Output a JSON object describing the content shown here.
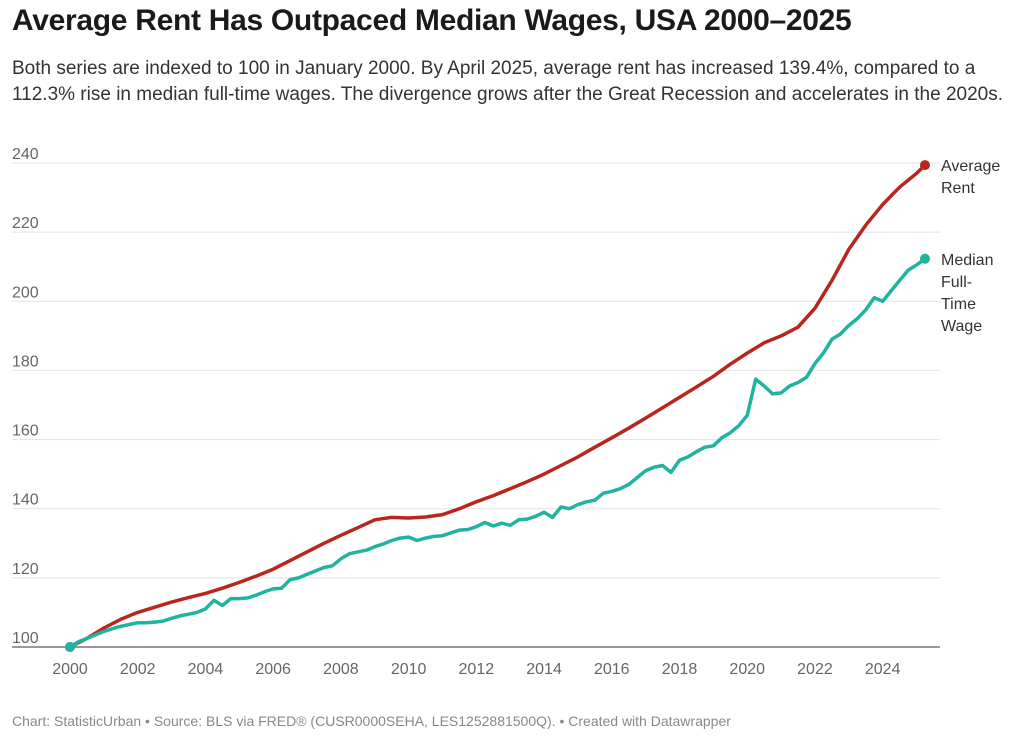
{
  "title": "Average Rent Has Outpaced Median Wages, USA 2000–2025",
  "subtitle": "Both series are indexed to 100 in January 2000. By April 2025, average rent has increased 139.4%, compared to a 112.3% rise in median full-time wages. The divergence grows after the Great Recession and accelerates in the 2020s.",
  "footer": "Chart: StatisticUrban • Source: BLS via FRED® (CUSR0000SEHA, LES1252881500Q). • Created with Datawrapper",
  "chart_data": {
    "type": "line",
    "xlim": [
      2000,
      2025.25
    ],
    "ylim": [
      100,
      240
    ],
    "x_ticks": [
      2000,
      2002,
      2004,
      2006,
      2008,
      2010,
      2012,
      2014,
      2016,
      2018,
      2020,
      2022,
      2024
    ],
    "y_ticks": [
      100,
      120,
      140,
      160,
      180,
      200,
      220,
      240
    ],
    "grid": "horizontal",
    "legend": "direct labels at line ends",
    "series": [
      {
        "name": "Average Rent",
        "label_lines": [
          "Average",
          "Rent"
        ],
        "color": "#b8261e",
        "x": [
          2000,
          2000.5,
          2001,
          2001.5,
          2002,
          2002.5,
          2003,
          2003.5,
          2004,
          2004.5,
          2005,
          2005.5,
          2006,
          2006.5,
          2007,
          2007.5,
          2008,
          2008.5,
          2009,
          2009.5,
          2010,
          2010.5,
          2011,
          2011.5,
          2012,
          2012.5,
          2013,
          2013.5,
          2014,
          2014.5,
          2015,
          2015.5,
          2016,
          2016.5,
          2017,
          2017.5,
          2018,
          2018.5,
          2019,
          2019.5,
          2020,
          2020.5,
          2021,
          2021.5,
          2022,
          2022.5,
          2023,
          2023.5,
          2024,
          2024.5,
          2025,
          2025.25
        ],
        "values": [
          100,
          102.5,
          105.5,
          108,
          110,
          111.5,
          113,
          114.3,
          115.5,
          117,
          118.7,
          120.5,
          122.5,
          125,
          127.5,
          130,
          132.3,
          134.5,
          136.8,
          137.5,
          137.3,
          137.6,
          138.3,
          140,
          142,
          143.8,
          145.8,
          147.8,
          150,
          152.5,
          155,
          157.8,
          160.5,
          163.3,
          166.2,
          169.2,
          172.2,
          175.2,
          178.3,
          181.8,
          185,
          188,
          190,
          192.5,
          198,
          206,
          215,
          222,
          228,
          233,
          237,
          239.4
        ]
      },
      {
        "name": "Median Full-Time Wage",
        "label_lines": [
          "Median",
          "Full-",
          "Time",
          "Wage"
        ],
        "color": "#1fb3a0",
        "x": [
          2000,
          2000.25,
          2000.5,
          2000.75,
          2001,
          2001.25,
          2001.5,
          2001.75,
          2002,
          2002.25,
          2002.5,
          2002.75,
          2003,
          2003.25,
          2003.5,
          2003.75,
          2004,
          2004.25,
          2004.5,
          2004.75,
          2005,
          2005.25,
          2005.5,
          2005.75,
          2006,
          2006.25,
          2006.5,
          2006.75,
          2007,
          2007.25,
          2007.5,
          2007.75,
          2008,
          2008.25,
          2008.5,
          2008.75,
          2009,
          2009.25,
          2009.5,
          2009.75,
          2010,
          2010.25,
          2010.5,
          2010.75,
          2011,
          2011.25,
          2011.5,
          2011.75,
          2012,
          2012.25,
          2012.5,
          2012.75,
          2013,
          2013.25,
          2013.5,
          2013.75,
          2014,
          2014.25,
          2014.5,
          2014.75,
          2015,
          2015.25,
          2015.5,
          2015.75,
          2016,
          2016.25,
          2016.5,
          2016.75,
          2017,
          2017.25,
          2017.5,
          2017.75,
          2018,
          2018.25,
          2018.5,
          2018.75,
          2019,
          2019.25,
          2019.5,
          2019.75,
          2020,
          2020.25,
          2020.5,
          2020.75,
          2021,
          2021.25,
          2021.5,
          2021.75,
          2022,
          2022.25,
          2022.5,
          2022.75,
          2023,
          2023.25,
          2023.5,
          2023.75,
          2024,
          2024.25,
          2024.5,
          2024.75,
          2025,
          2025.25
        ],
        "values": [
          100,
          101.5,
          102.5,
          103.5,
          104.5,
          105.3,
          106,
          106.5,
          107,
          107,
          107.2,
          107.5,
          108.3,
          109,
          109.5,
          110,
          111,
          113.5,
          112,
          114,
          114,
          114.2,
          115,
          116,
          116.8,
          117,
          119.5,
          120,
          121,
          122,
          123,
          123.5,
          125.5,
          127,
          127.5,
          128,
          129,
          129.8,
          130.8,
          131.5,
          131.8,
          130.8,
          131.5,
          132,
          132.2,
          133,
          133.8,
          134,
          134.8,
          136,
          135,
          135.8,
          135.2,
          136.8,
          137,
          137.8,
          139,
          137.5,
          140.5,
          140,
          141.2,
          142,
          142.5,
          144.5,
          145,
          145.8,
          147,
          149,
          151,
          152,
          152.5,
          150.5,
          154,
          155,
          156.5,
          157.8,
          158.2,
          160.5,
          162,
          164,
          167,
          177.5,
          175.5,
          173.2,
          173.5,
          175.5,
          176.5,
          178,
          182,
          185,
          189,
          190.5,
          193,
          195,
          197.5,
          201,
          200,
          203,
          206,
          209,
          210.5,
          212.3
        ]
      }
    ]
  }
}
